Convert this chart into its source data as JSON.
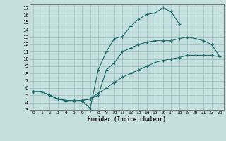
{
  "xlabel": "Humidex (Indice chaleur)",
  "xlim": [
    -0.5,
    23.5
  ],
  "ylim": [
    3,
    17.5
  ],
  "xticks": [
    0,
    1,
    2,
    3,
    4,
    5,
    6,
    7,
    8,
    9,
    10,
    11,
    12,
    13,
    14,
    15,
    16,
    17,
    18,
    19,
    20,
    21,
    22,
    23
  ],
  "yticks": [
    3,
    4,
    5,
    6,
    7,
    8,
    9,
    10,
    11,
    12,
    13,
    14,
    15,
    16,
    17
  ],
  "bg_color": "#c5dede",
  "grid_color": "#9ec4c4",
  "line_color": "#1a6b6b",
  "curve1_x": [
    0,
    1,
    2,
    3,
    4,
    5,
    6,
    7,
    8,
    9,
    10,
    11,
    12,
    13,
    14,
    15,
    16,
    17,
    18
  ],
  "curve1_y": [
    5.5,
    5.5,
    5.0,
    4.5,
    4.3,
    4.3,
    4.3,
    3.2,
    8.5,
    11.0,
    12.8,
    13.1,
    14.5,
    15.5,
    16.1,
    16.3,
    17.0,
    16.5,
    14.8
  ],
  "curve2_x": [
    0,
    1,
    2,
    3,
    4,
    5,
    6,
    7,
    8,
    9,
    10,
    11,
    12,
    13,
    14,
    15,
    16,
    17,
    18,
    19,
    20,
    21,
    22,
    23
  ],
  "curve2_y": [
    5.5,
    5.5,
    5.0,
    4.5,
    4.3,
    4.3,
    4.3,
    4.5,
    5.0,
    8.5,
    9.5,
    11.0,
    11.5,
    12.0,
    12.3,
    12.5,
    12.5,
    12.5,
    12.8,
    13.0,
    12.8,
    12.5,
    12.0,
    10.3
  ],
  "curve3_x": [
    0,
    1,
    2,
    3,
    4,
    5,
    6,
    7,
    8,
    9,
    10,
    11,
    12,
    13,
    14,
    15,
    16,
    17,
    18,
    19,
    20,
    21,
    22,
    23
  ],
  "curve3_y": [
    5.5,
    5.5,
    5.0,
    4.5,
    4.3,
    4.3,
    4.3,
    4.5,
    5.3,
    6.0,
    6.8,
    7.5,
    8.0,
    8.5,
    9.0,
    9.5,
    9.8,
    10.0,
    10.2,
    10.5,
    10.5,
    10.5,
    10.5,
    10.3
  ]
}
